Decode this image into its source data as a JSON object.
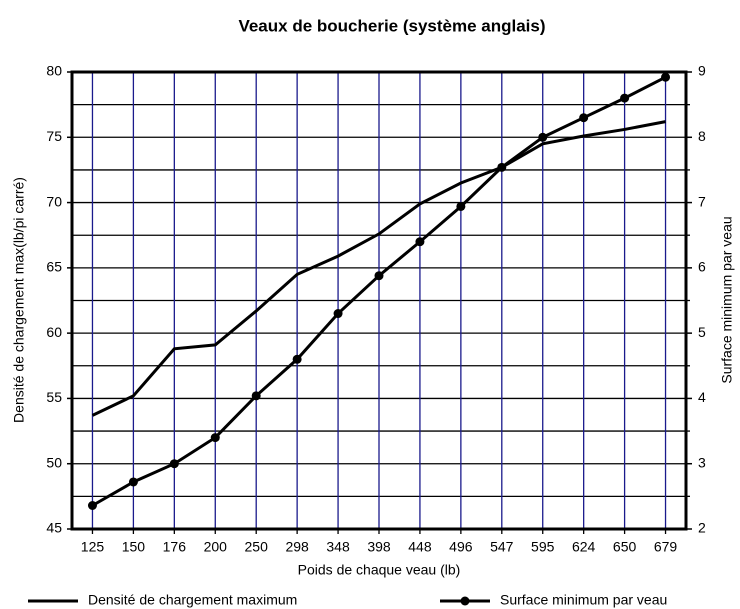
{
  "chart_data": {
    "type": "line",
    "title": "Veaux de boucherie (système anglais)",
    "x_label": "Poids de chaque veau (lb)",
    "y_label": "Densité de chargement max(lb/pi carré)",
    "y2_label": "Surface minimum par veau",
    "categories": [
      "125",
      "150",
      "176",
      "200",
      "250",
      "298",
      "348",
      "398",
      "448",
      "496",
      "547",
      "595",
      "624",
      "650",
      "679"
    ],
    "series": [
      {
        "name": "Densité de chargement maximum",
        "color": "#000000",
        "axis": "y",
        "values": [
          53.7,
          55.2,
          58.8,
          59.1,
          61.7,
          64.5,
          65.9,
          67.6,
          69.9,
          71.5,
          72.7,
          74.5,
          75.1,
          75.6,
          76.2
        ]
      },
      {
        "name": "Surface minimum par veau",
        "color": "#000000",
        "axis": "y2",
        "markers": true,
        "values": [
          2.36,
          2.72,
          3.0,
          3.4,
          4.04,
          4.6,
          5.3,
          5.88,
          6.4,
          6.94,
          7.54,
          8.0,
          8.3,
          8.6,
          8.92
        ]
      }
    ],
    "ylim": [
      45,
      80
    ],
    "yticks": [
      45,
      50,
      55,
      60,
      65,
      70,
      75,
      80
    ],
    "y2lim": [
      2,
      9
    ],
    "y2ticks": [
      2,
      3,
      4,
      5,
      6,
      7,
      8,
      9
    ],
    "y2minorticks": [
      2.5,
      3.5,
      4.5,
      5.5,
      6.5,
      7.5,
      8.5
    ],
    "grid": true,
    "legend": "bottom"
  }
}
